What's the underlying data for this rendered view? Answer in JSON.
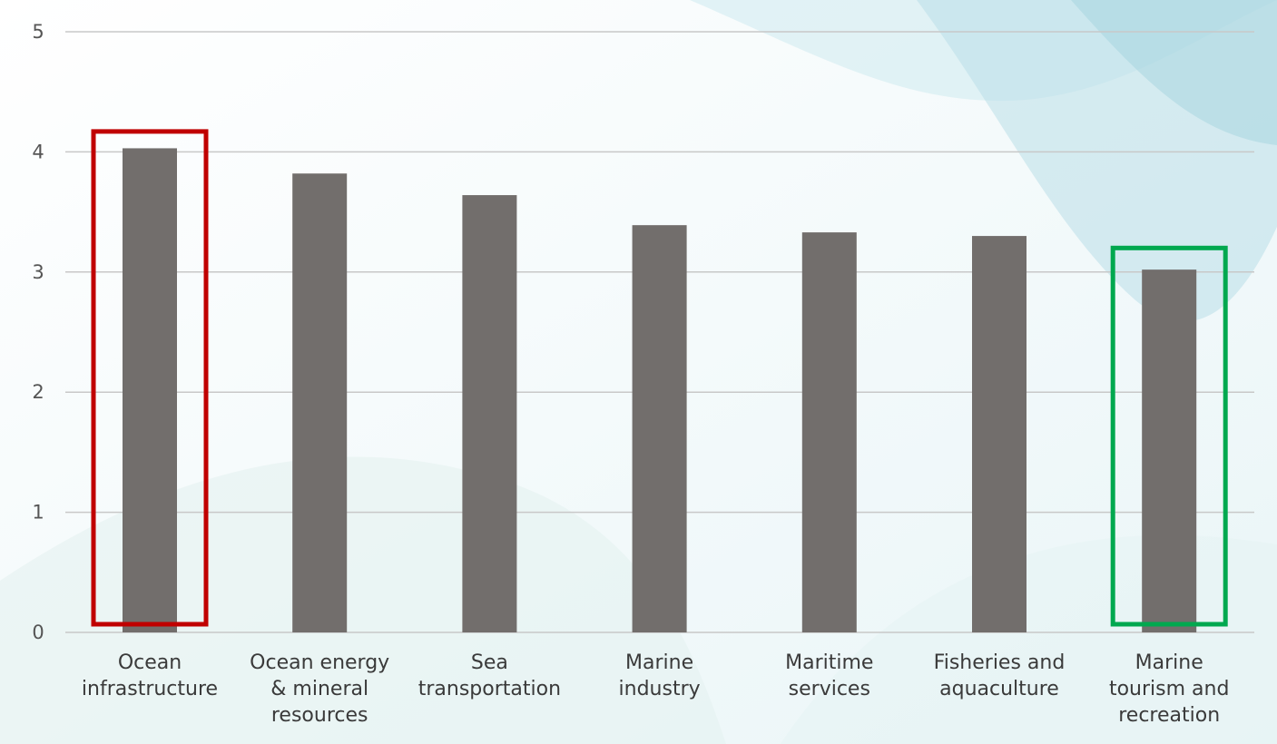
{
  "chart_data": {
    "type": "bar",
    "categories": [
      [
        "Ocean",
        "infrastructure"
      ],
      [
        "Ocean energy",
        "& mineral",
        "resources"
      ],
      [
        "Sea",
        "transportation"
      ],
      [
        "Marine",
        "industry"
      ],
      [
        "Maritime",
        "services"
      ],
      [
        "Fisheries and",
        "aquaculture"
      ],
      [
        "Marine",
        "tourism and",
        "recreation"
      ]
    ],
    "values": [
      4.03,
      3.82,
      3.64,
      3.39,
      3.33,
      3.3,
      3.02
    ],
    "ylim": [
      0,
      5
    ],
    "yticks": [
      "0",
      "1",
      "2",
      "3",
      "4",
      "5"
    ],
    "grid": true,
    "bar_color": "#726e6c",
    "gridline_color": "#c8c8c8",
    "highlights": [
      {
        "category_index": 0,
        "color": "#c00000",
        "note_value": 4.17
      },
      {
        "category_index": 6,
        "color": "#00a84f",
        "note_value": 3.2
      }
    ]
  }
}
